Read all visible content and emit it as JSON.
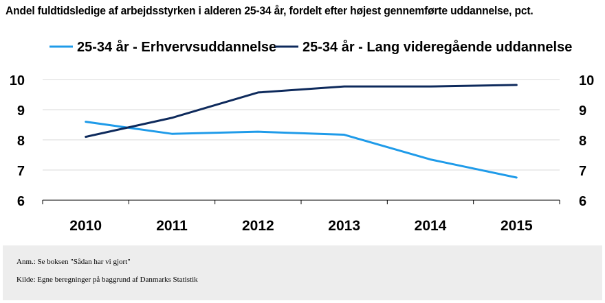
{
  "chart_data": {
    "type": "line",
    "title": "Andel fuldtidsledige af arbejdsstyrken i alderen 25-34 år, fordelt efter højest gennemførte uddannelse, pct.",
    "x": [
      "2010",
      "2011",
      "2012",
      "2013",
      "2014",
      "2015"
    ],
    "series": [
      {
        "name": "25-34 år - Erhvervsuddannelse",
        "color": "#1f9be9",
        "values": [
          8.6,
          8.2,
          8.27,
          8.17,
          7.35,
          6.75
        ]
      },
      {
        "name": "25-34 år - Lang videregående uddannelse",
        "color": "#0e2a5c",
        "values": [
          8.1,
          8.73,
          9.57,
          9.77,
          9.77,
          9.82
        ]
      }
    ],
    "ylim": [
      6,
      10
    ],
    "yticks": [
      6,
      7,
      8,
      9,
      10
    ],
    "ytick_labels": [
      "6",
      "7",
      "8",
      "9",
      "10"
    ],
    "grid": true,
    "secondary_axis": true,
    "legend_position": "top",
    "xlabel": "",
    "ylabel": ""
  },
  "footer": {
    "note": "Anm.: Se boksen \"Sådan har vi gjort\"",
    "source": "Kilde: Egne beregninger på baggrund  af Danmarks Statistik"
  }
}
